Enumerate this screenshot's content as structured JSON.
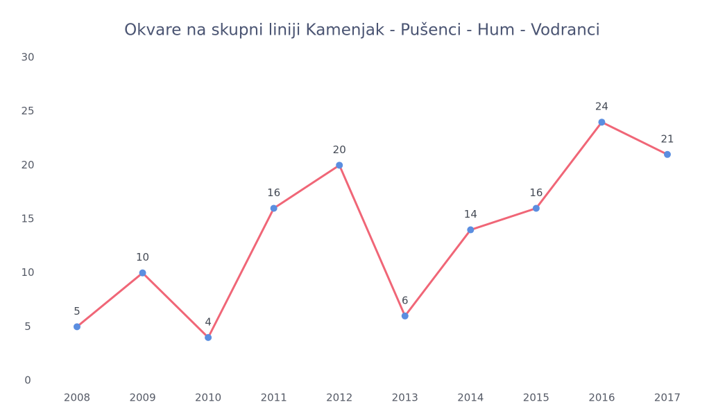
{
  "chart_data": {
    "type": "line",
    "title": "Okvare na skupni liniji Kamenjak - Pušenci - Hum - Vodranci",
    "categories": [
      "2008",
      "2009",
      "2010",
      "2011",
      "2012",
      "2013",
      "2014",
      "2015",
      "2016",
      "2017"
    ],
    "values": [
      5,
      10,
      4,
      16,
      20,
      6,
      14,
      16,
      24,
      21
    ],
    "color": "#f06677",
    "marker_color": "#5b8ee0",
    "ylim": [
      0,
      30
    ],
    "yticks": [
      0,
      5,
      10,
      15,
      20,
      25,
      30
    ],
    "grid": false
  }
}
